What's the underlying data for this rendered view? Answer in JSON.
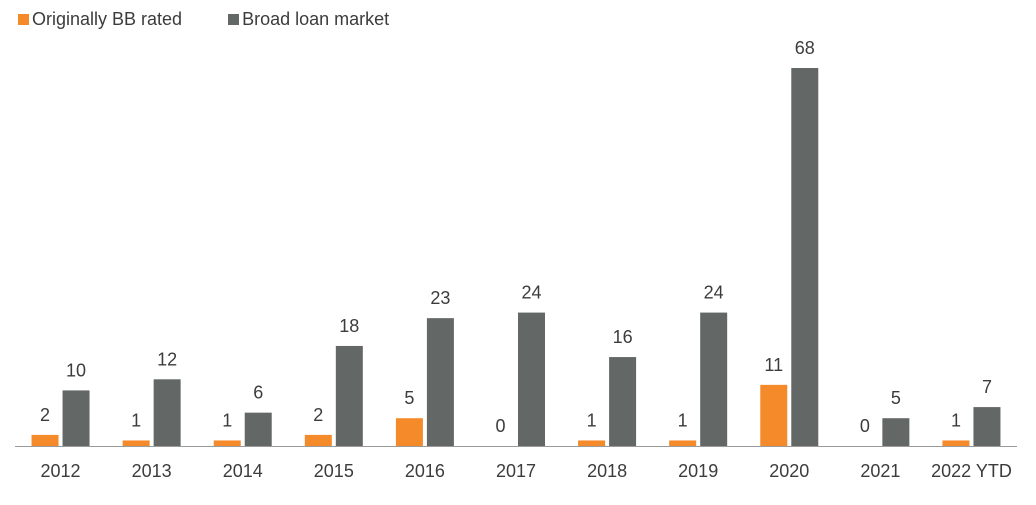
{
  "chart_data": {
    "type": "bar",
    "categories": [
      "2012",
      "2013",
      "2014",
      "2015",
      "2016",
      "2017",
      "2018",
      "2019",
      "2020",
      "2021",
      "2022 YTD"
    ],
    "series": [
      {
        "name": "Originally BB rated",
        "color": "#f58a2b",
        "values": [
          2,
          1,
          1,
          2,
          5,
          0,
          1,
          1,
          11,
          0,
          1
        ]
      },
      {
        "name": "Broad loan market",
        "color": "#636867",
        "values": [
          10,
          12,
          6,
          18,
          23,
          24,
          16,
          24,
          68,
          5,
          7
        ]
      }
    ],
    "ylim": [
      0,
      68
    ],
    "grid": false,
    "legend_position": "top-left"
  }
}
